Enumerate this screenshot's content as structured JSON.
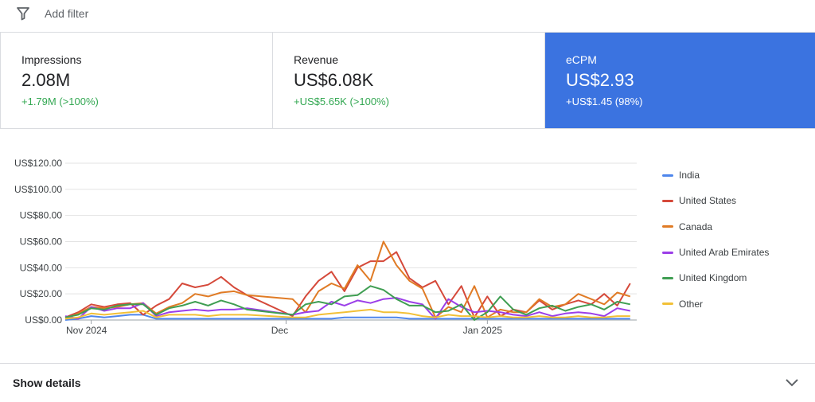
{
  "filter": {
    "label": "Add filter",
    "icon": "filter-icon"
  },
  "cards": [
    {
      "title": "Impressions",
      "value": "2.08M",
      "delta": "+1.79M (>100%)",
      "selected": false
    },
    {
      "title": "Revenue",
      "value": "US$6.08K",
      "delta": "+US$5.65K (>100%)",
      "selected": false
    },
    {
      "title": "eCPM",
      "value": "US$2.93",
      "delta": "+US$1.45 (98%)",
      "selected": true
    }
  ],
  "accent": "#3b73e0",
  "chart_data": {
    "type": "line",
    "ylim": [
      0,
      120
    ],
    "yticks": [
      "US$0.00",
      "US$20.00",
      "US$40.00",
      "US$60.00",
      "US$80.00",
      "US$100.00",
      "US$120.00"
    ],
    "ytick_values": [
      0,
      20,
      40,
      60,
      80,
      100,
      120
    ],
    "xticks": [
      {
        "label": "Nov 2024",
        "date": "2024-11-01"
      },
      {
        "label": "Dec",
        "date": "2024-12-01"
      },
      {
        "label": "Jan 2025",
        "date": "2025-01-01"
      }
    ],
    "xlim": [
      "2024-10-28",
      "2025-01-24"
    ],
    "grid": true,
    "legend": "right",
    "x": [
      "2024-10-28",
      "2024-10-30",
      "2024-11-01",
      "2024-11-03",
      "2024-11-05",
      "2024-11-07",
      "2024-11-09",
      "2024-11-11",
      "2024-11-13",
      "2024-11-15",
      "2024-11-17",
      "2024-11-19",
      "2024-11-21",
      "2024-11-23",
      "2024-11-25",
      "2024-12-02",
      "2024-12-04",
      "2024-12-06",
      "2024-12-08",
      "2024-12-10",
      "2024-12-12",
      "2024-12-14",
      "2024-12-16",
      "2024-12-18",
      "2024-12-20",
      "2024-12-22",
      "2024-12-24",
      "2024-12-26",
      "2024-12-28",
      "2024-12-30",
      "2025-01-01",
      "2025-01-03",
      "2025-01-05",
      "2025-01-07",
      "2025-01-09",
      "2025-01-11",
      "2025-01-13",
      "2025-01-15",
      "2025-01-17",
      "2025-01-19",
      "2025-01-21",
      "2025-01-23"
    ],
    "series": [
      {
        "name": "India",
        "color": "#4e86ec",
        "values": [
          0,
          1,
          3,
          2,
          3,
          4,
          4,
          1,
          1,
          1,
          1,
          1,
          1,
          1,
          1,
          1,
          1,
          1,
          1,
          2,
          2,
          2,
          2,
          2,
          1,
          1,
          1,
          1,
          1,
          1,
          1,
          1,
          1,
          1,
          1,
          1,
          1,
          1,
          1,
          1,
          1,
          1
        ]
      },
      {
        "name": "United States",
        "color": "#d5493a",
        "values": [
          2,
          6,
          12,
          10,
          12,
          13,
          4,
          11,
          16,
          28,
          25,
          27,
          33,
          25,
          19,
          3,
          18,
          30,
          37,
          22,
          40,
          45,
          45,
          52,
          32,
          25,
          30,
          12,
          26,
          2,
          18,
          3,
          8,
          6,
          15,
          8,
          12,
          15,
          12,
          20,
          11,
          28
        ]
      },
      {
        "name": "Canada",
        "color": "#e07b25",
        "values": [
          1,
          5,
          10,
          9,
          10,
          12,
          13,
          5,
          10,
          13,
          20,
          18,
          21,
          22,
          19,
          16,
          6,
          22,
          28,
          24,
          42,
          30,
          60,
          42,
          30,
          24,
          2,
          10,
          6,
          26,
          2,
          8,
          6,
          6,
          16,
          10,
          12,
          20,
          16,
          12,
          21,
          18
        ]
      },
      {
        "name": "United Arab Emirates",
        "color": "#9b3ee8",
        "values": [
          3,
          1,
          10,
          7,
          9,
          9,
          13,
          3,
          6,
          7,
          8,
          7,
          8,
          8,
          9,
          4,
          6,
          7,
          14,
          11,
          15,
          13,
          16,
          17,
          14,
          12,
          1,
          16,
          10,
          6,
          7,
          6,
          4,
          3,
          6,
          3,
          5,
          6,
          5,
          3,
          9,
          7
        ]
      },
      {
        "name": "United Kingdom",
        "color": "#3f9e52",
        "values": [
          2,
          4,
          9,
          8,
          11,
          12,
          12,
          4,
          9,
          11,
          14,
          11,
          15,
          12,
          8,
          4,
          12,
          14,
          12,
          18,
          19,
          26,
          23,
          16,
          11,
          11,
          6,
          7,
          12,
          0,
          6,
          18,
          8,
          4,
          9,
          11,
          7,
          10,
          12,
          8,
          14,
          12
        ]
      },
      {
        "name": "Other",
        "color": "#f2c037",
        "values": [
          1,
          2,
          5,
          4,
          5,
          6,
          7,
          2,
          4,
          4,
          4,
          3,
          4,
          4,
          4,
          2,
          2,
          4,
          5,
          6,
          7,
          8,
          6,
          6,
          5,
          3,
          2,
          4,
          3,
          3,
          2,
          3,
          2,
          2,
          3,
          2,
          2,
          3,
          2,
          2,
          3,
          3
        ]
      }
    ]
  },
  "details": {
    "label": "Show details"
  }
}
